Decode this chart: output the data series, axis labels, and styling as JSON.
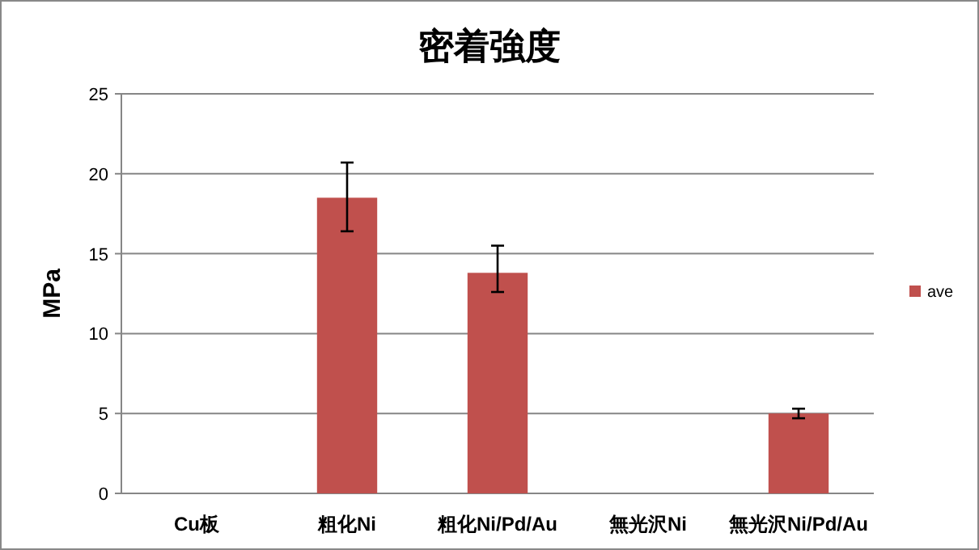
{
  "chart_data": {
    "type": "bar",
    "title": "密着強度",
    "ylabel": "MPa",
    "categories": [
      "Cu板",
      "粗化Ni",
      "粗化Ni/Pd/Au",
      "無光沢Ni",
      "無光沢Ni/Pd/Au"
    ],
    "series": [
      {
        "name": "ave",
        "color": "#c0504d",
        "values": [
          null,
          18.5,
          13.8,
          null,
          5.0
        ],
        "errors": [
          null,
          [
            16.4,
            20.7
          ],
          [
            12.6,
            15.5
          ],
          null,
          [
            4.7,
            5.3
          ]
        ]
      }
    ],
    "ylim": [
      0,
      25
    ],
    "yticks": [
      0,
      5,
      10,
      15,
      20,
      25
    ],
    "grid": "y",
    "legend": "right"
  }
}
